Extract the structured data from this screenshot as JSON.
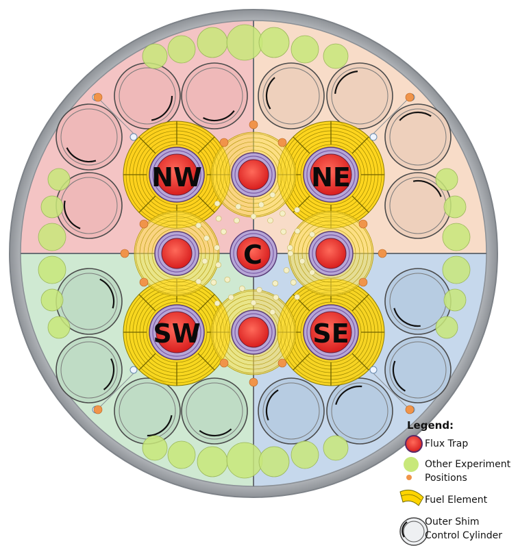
{
  "flux_traps": {
    "nw": "NW",
    "ne": "NE",
    "sw": "SW",
    "se": "SE",
    "center": "C"
  },
  "legend": {
    "title": "Legend:",
    "flux_trap": "Flux Trap",
    "other_experiment_line1": "Other Experiment",
    "other_experiment_line2": "Positions",
    "fuel_element": "Fuel Element",
    "outer_shim_line1": "Outer Shim",
    "outer_shim_line2": "Control Cylinder"
  },
  "colors": {
    "nw_quadrant": "#f4c4c4",
    "ne_quadrant": "#f8dcc8",
    "sw_quadrant": "#cfe9d2",
    "se_quadrant": "#c6d8ec",
    "flux_trap": "#ee3b3b",
    "fuel": "#ffd400",
    "experiment_large": "#c8e87a",
    "experiment_small": "#f0944a",
    "vessel": "#a9aeb4"
  }
}
